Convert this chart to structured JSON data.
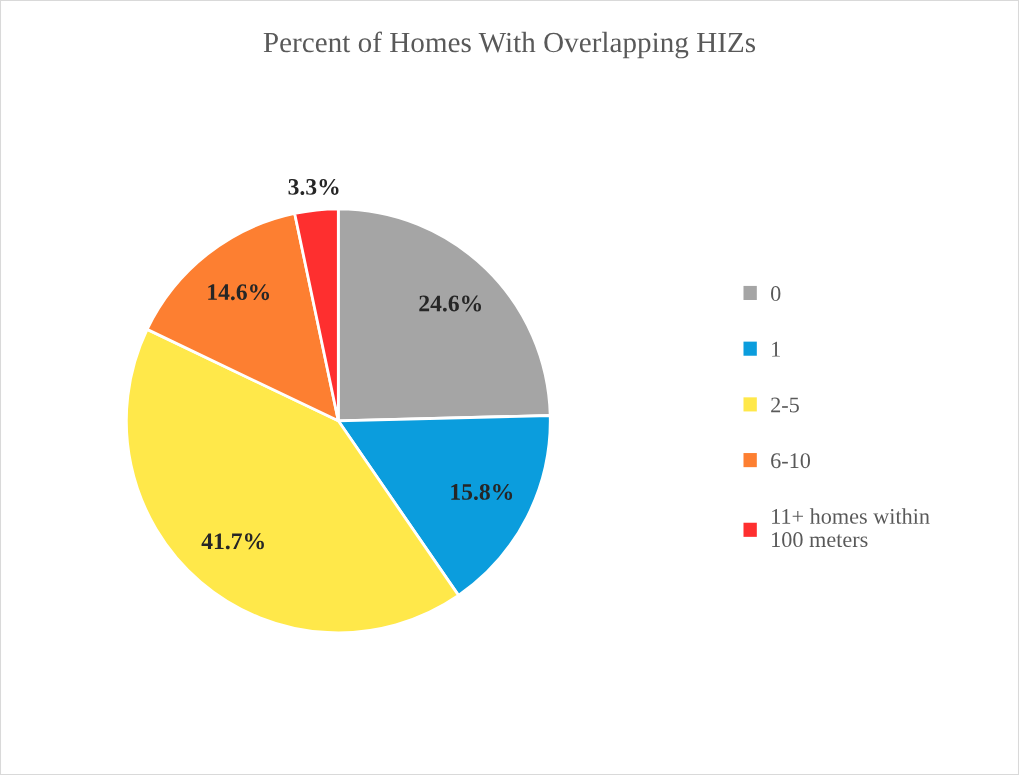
{
  "chart_data": {
    "type": "pie",
    "title": "Percent of Homes With Overlapping HIZs",
    "categories": [
      "0",
      "1",
      "2-5",
      "6-10",
      "11+ homes within\n100 meters"
    ],
    "values": [
      24.6,
      15.8,
      41.7,
      14.6,
      3.3
    ],
    "colors": [
      "#a5a5a5",
      "#0b9ddd",
      "#ffe84a",
      "#fd7f31",
      "#fe2f2f"
    ],
    "value_labels": [
      "24.6%",
      "15.8%",
      "41.7%",
      "14.6%",
      "3.3%"
    ],
    "legend": "right"
  }
}
